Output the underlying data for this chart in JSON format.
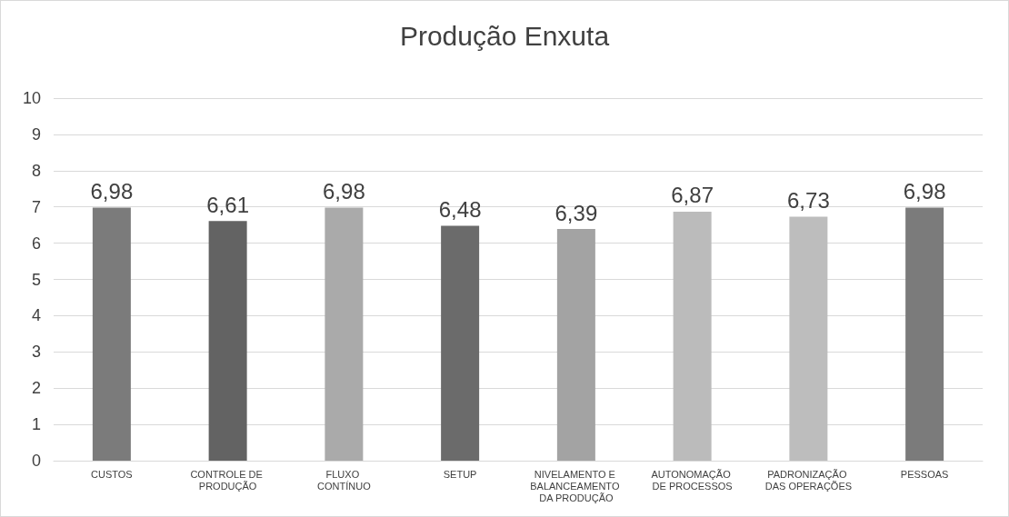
{
  "chart_data": {
    "type": "bar",
    "title": "Produção Enxuta",
    "categories": [
      "CUSTOS",
      "CONTROLE DE PRODUÇÃO",
      "FLUXO CONTÍNUO",
      "SETUP",
      "NIVELAMENTO E BALANCEAMENTO DA PRODUÇÃO",
      "AUTONOMAÇÃO DE PROCESSOS",
      "PADRONIZAÇÃO DAS OPERAÇÕES",
      "PESSOAS"
    ],
    "values": [
      6.98,
      6.61,
      6.98,
      6.48,
      6.39,
      6.87,
      6.73,
      6.98
    ],
    "value_labels": [
      "6,98",
      "6,61",
      "6,98",
      "6,48",
      "6,39",
      "6,87",
      "6,73",
      "6,98"
    ],
    "colors": [
      "#7b7b7b",
      "#636363",
      "#aaaaaa",
      "#6b6b6b",
      "#a3a3a3",
      "#bbbbbb",
      "#bdbdbd",
      "#7b7b7b"
    ],
    "ylim": [
      0,
      10
    ],
    "yticks": [
      0,
      1,
      2,
      3,
      4,
      5,
      6,
      7,
      8,
      9,
      10
    ],
    "grid": "y"
  }
}
